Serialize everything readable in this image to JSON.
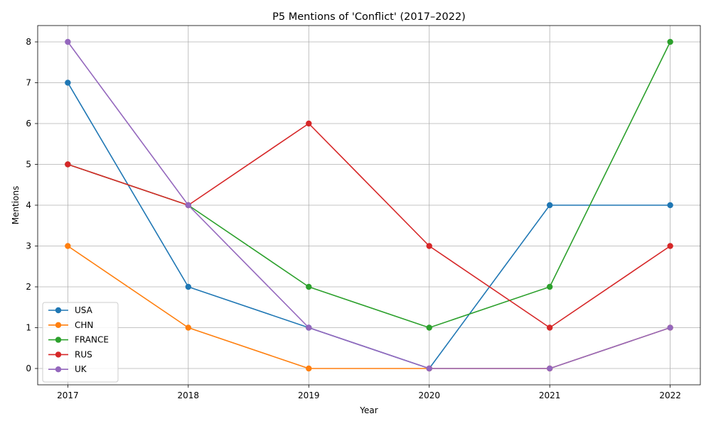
{
  "chart_data": {
    "type": "line",
    "title": "P5 Mentions of 'Conflict' (2017–2022)",
    "xlabel": "Year",
    "ylabel": "Mentions",
    "x": [
      "2017",
      "2018",
      "2019",
      "2020",
      "2021",
      "2022"
    ],
    "yticks": [
      "0",
      "1",
      "2",
      "3",
      "4",
      "5",
      "6",
      "7",
      "8"
    ],
    "ylim": [
      -0.4,
      8.4
    ],
    "grid": true,
    "legend_position": "lower-left",
    "series": [
      {
        "name": "USA",
        "color": "#1f77b4",
        "values": [
          7,
          2,
          1,
          0,
          4,
          4
        ]
      },
      {
        "name": "CHN",
        "color": "#ff7f0e",
        "values": [
          3,
          1,
          0,
          0,
          0,
          1
        ]
      },
      {
        "name": "FRANCE",
        "color": "#2ca02c",
        "values": [
          5,
          4,
          2,
          1,
          2,
          8
        ]
      },
      {
        "name": "RUS",
        "color": "#d62728",
        "values": [
          5,
          4,
          6,
          3,
          1,
          3
        ]
      },
      {
        "name": "UK",
        "color": "#9467bd",
        "values": [
          8,
          4,
          1,
          0,
          0,
          1
        ]
      }
    ]
  }
}
